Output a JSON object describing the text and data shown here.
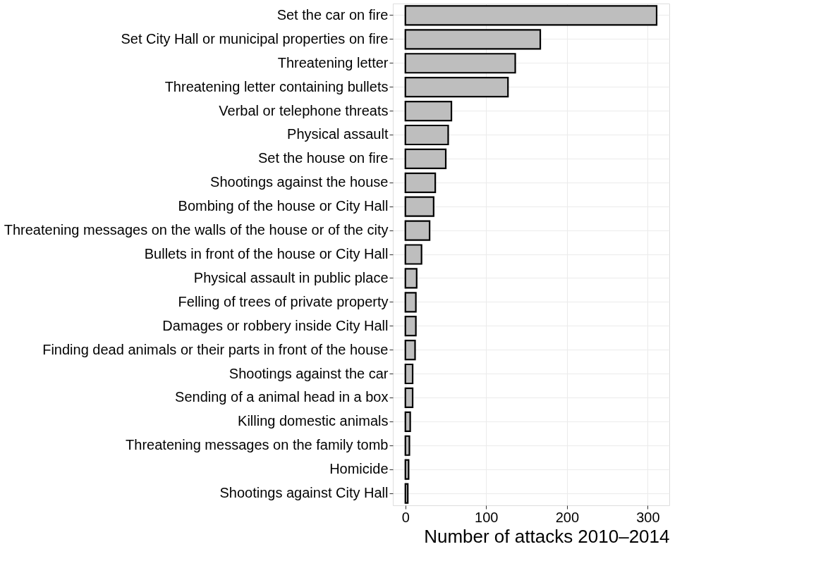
{
  "chart_data": {
    "type": "bar",
    "orientation": "horizontal",
    "xlabel": "Number of attacks 2010–2014",
    "categories": [
      "Set the car on fire",
      "Set City Hall or municipal properties on fire",
      "Threatening letter",
      "Threatening letter containing bullets",
      "Verbal or telephone threats",
      "Physical assault",
      "Set the house on fire",
      "Shootings against the house",
      "Bombing of the house or City Hall",
      "Threatening messages on the walls of the house or of the city",
      "Bullets in front of the house or City Hall",
      "Physical assault in public place",
      "Felling of trees of private property",
      "Damages or robbery inside City Hall",
      "Finding dead animals or their parts in front of the house",
      "Shootings against the car",
      "Sending of a animal head in a box",
      "Killing domestic animals",
      "Threatening messages on the family tomb",
      "Homicide",
      "Shootings against City Hall"
    ],
    "values": [
      311,
      167,
      136,
      127,
      57,
      53,
      50,
      37,
      35,
      30,
      20,
      14,
      13,
      13,
      12,
      9,
      9,
      6,
      5,
      4,
      3
    ],
    "color": "#bebebe",
    "xlim": [
      -15.5,
      326.7
    ],
    "xticks": [
      0,
      100,
      200,
      300
    ],
    "grid": true
  }
}
